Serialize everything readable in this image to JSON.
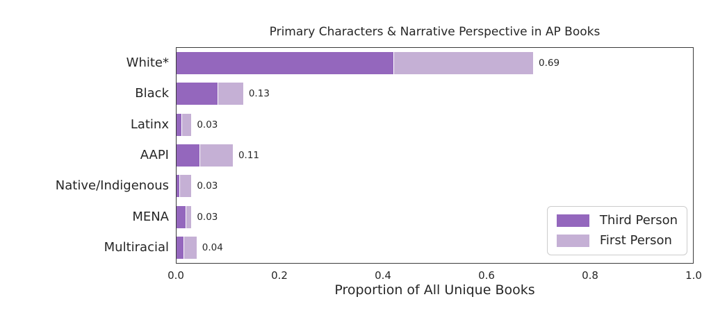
{
  "chart_data": {
    "type": "bar",
    "orientation": "horizontal",
    "stacked": true,
    "title": "Primary Characters & Narrative Perspective in AP Books",
    "xlabel": "Proportion of All Unique Books",
    "ylabel": "",
    "categories": [
      "White*",
      "Black",
      "Latinx",
      "AAPI",
      "Native/Indigenous",
      "MENA",
      "Multiracial"
    ],
    "series": [
      {
        "name": "Third Person",
        "color": "#9467bd",
        "values": [
          0.42,
          0.08,
          0.011,
          0.046,
          0.007,
          0.019,
          0.015
        ]
      },
      {
        "name": "First Person",
        "color": "#c5b0d5",
        "values": [
          0.27,
          0.05,
          0.019,
          0.064,
          0.023,
          0.011,
          0.025
        ]
      }
    ],
    "totals": [
      0.69,
      0.13,
      0.03,
      0.11,
      0.03,
      0.03,
      0.04
    ],
    "bar_labels": [
      "0.69",
      "0.13",
      "0.03",
      "0.11",
      "0.03",
      "0.03",
      "0.04"
    ],
    "xlim": [
      0,
      1
    ],
    "xticks": [
      "0.0",
      "0.2",
      "0.4",
      "0.6",
      "0.8",
      "1.0"
    ],
    "grid": false,
    "legend": {
      "position": "lower right",
      "entries": [
        "Third Person",
        "First Person"
      ]
    }
  },
  "colors": {
    "background": "#ffffff",
    "text": "#262626",
    "spine": "#3a3a3a",
    "legend_border": "#cccccc",
    "third_person": "#9467bd",
    "first_person": "#c5b0d5"
  }
}
